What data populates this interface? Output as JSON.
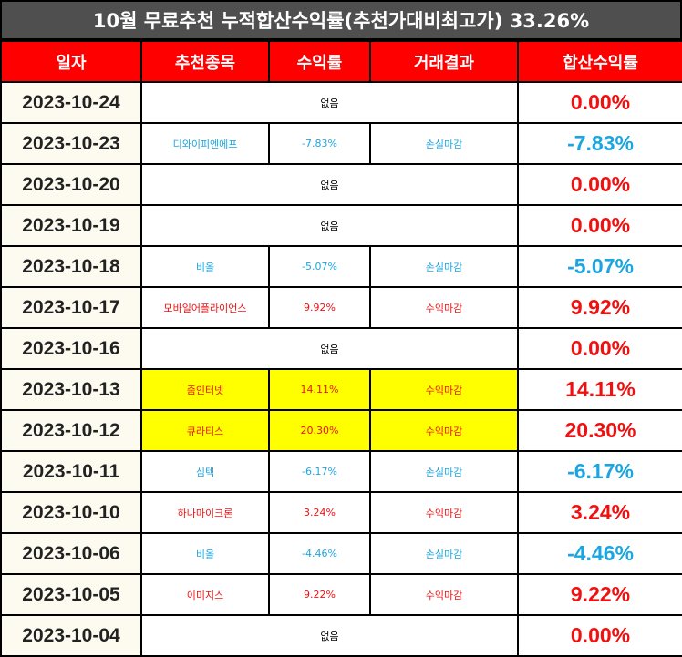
{
  "title": "10월 무료추천 누적합산수익률(추천가대비최고가) 33.26%",
  "columns": [
    "일자",
    "추천종목",
    "수익률",
    "거래결과",
    "합산수익률"
  ],
  "colors": {
    "header_bg": "#ff0000",
    "title_bg": "#4f4f4f",
    "profit": "#f01010",
    "loss": "#1aa6e0",
    "highlight": "#ffff00"
  },
  "rows": [
    {
      "date": "2023-10-24",
      "stock": "",
      "ret": "",
      "result": "",
      "none": "없음",
      "total": "0.00%",
      "tone": "red",
      "hl": false
    },
    {
      "date": "2023-10-23",
      "stock": "디와이피엔에프",
      "ret": "-7.83%",
      "result": "손실마감",
      "none": "",
      "total": "-7.83%",
      "tone": "blue",
      "hl": false
    },
    {
      "date": "2023-10-20",
      "stock": "",
      "ret": "",
      "result": "",
      "none": "없음",
      "total": "0.00%",
      "tone": "red",
      "hl": false
    },
    {
      "date": "2023-10-19",
      "stock": "",
      "ret": "",
      "result": "",
      "none": "없음",
      "total": "0.00%",
      "tone": "red",
      "hl": false
    },
    {
      "date": "2023-10-18",
      "stock": "비올",
      "ret": "-5.07%",
      "result": "손실마감",
      "none": "",
      "total": "-5.07%",
      "tone": "blue",
      "hl": false
    },
    {
      "date": "2023-10-17",
      "stock": "모바일어플라이언스",
      "ret": "9.92%",
      "result": "수익마감",
      "none": "",
      "total": "9.92%",
      "tone": "red",
      "hl": false
    },
    {
      "date": "2023-10-16",
      "stock": "",
      "ret": "",
      "result": "",
      "none": "없음",
      "total": "0.00%",
      "tone": "red",
      "hl": false
    },
    {
      "date": "2023-10-13",
      "stock": "줌인터넷",
      "ret": "14.11%",
      "result": "수익마감",
      "none": "",
      "total": "14.11%",
      "tone": "red",
      "hl": true
    },
    {
      "date": "2023-10-12",
      "stock": "큐라티스",
      "ret": "20.30%",
      "result": "수익마감",
      "none": "",
      "total": "20.30%",
      "tone": "red",
      "hl": true
    },
    {
      "date": "2023-10-11",
      "stock": "심텍",
      "ret": "-6.17%",
      "result": "손실마감",
      "none": "",
      "total": "-6.17%",
      "tone": "blue",
      "hl": false
    },
    {
      "date": "2023-10-10",
      "stock": "하나마이크론",
      "ret": "3.24%",
      "result": "수익마감",
      "none": "",
      "total": "3.24%",
      "tone": "red",
      "hl": false
    },
    {
      "date": "2023-10-06",
      "stock": "비올",
      "ret": "-4.46%",
      "result": "손실마감",
      "none": "",
      "total": "-4.46%",
      "tone": "blue",
      "hl": false
    },
    {
      "date": "2023-10-05",
      "stock": "이미지스",
      "ret": "9.22%",
      "result": "수익마감",
      "none": "",
      "total": "9.22%",
      "tone": "red",
      "hl": false
    },
    {
      "date": "2023-10-04",
      "stock": "",
      "ret": "",
      "result": "",
      "none": "없음",
      "total": "0.00%",
      "tone": "red",
      "hl": false
    }
  ]
}
